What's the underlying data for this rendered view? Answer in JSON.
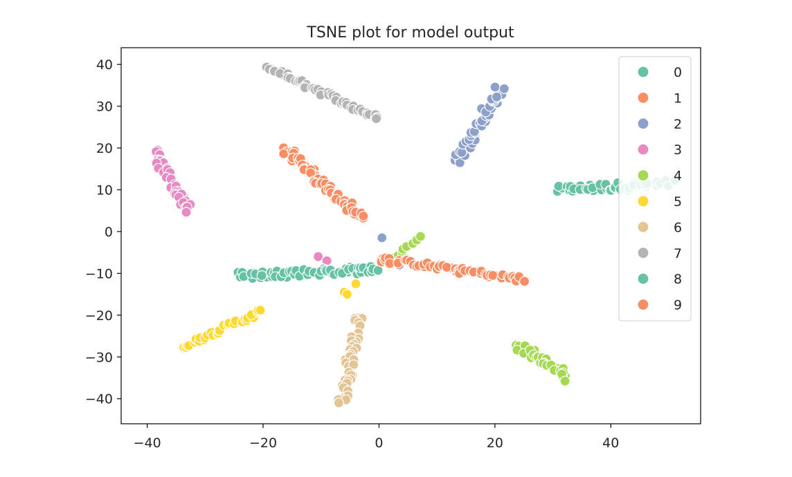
{
  "chart_data": {
    "type": "scatter",
    "title": "TSNE plot for model output",
    "xlabel": "",
    "ylabel": "",
    "xlim": [
      -44.5,
      55.5
    ],
    "ylim": [
      -46,
      44
    ],
    "xticks": [
      -40,
      -20,
      0,
      20,
      40
    ],
    "xtick_labels": [
      "−40",
      "−20",
      "0",
      "20",
      "40"
    ],
    "yticks": [
      -40,
      -30,
      -20,
      -10,
      0,
      10,
      20,
      30,
      40
    ],
    "ytick_labels": [
      "−40",
      "−30",
      "−20",
      "−10",
      "0",
      "10",
      "20",
      "30",
      "40"
    ],
    "grid": false,
    "legend_position": "top-right",
    "series": [
      {
        "name": "0",
        "color": "#66c2a5",
        "clusters": [
          {
            "from": [
              30.5,
              10.0
            ],
            "to": [
              51.5,
              11.5
            ],
            "n": 55,
            "spread": 1.0
          }
        ],
        "points": []
      },
      {
        "name": "1",
        "color": "#fc8d62",
        "clusters": [
          {
            "from": [
              -16.0,
              19.5
            ],
            "to": [
              -3.0,
              3.0
            ],
            "n": 60,
            "spread": 0.9
          }
        ],
        "points": []
      },
      {
        "name": "2",
        "color": "#8da0cb",
        "clusters": [
          {
            "from": [
              13.5,
              16.5
            ],
            "to": [
              21.0,
              34.0
            ],
            "n": 45,
            "spread": 1.0
          }
        ],
        "points": [
          [
            0.5,
            -1.5
          ]
        ]
      },
      {
        "name": "3",
        "color": "#e78ac3",
        "clusters": [
          {
            "from": [
              -39.0,
              19.0
            ],
            "to": [
              -32.5,
              5.0
            ],
            "n": 35,
            "spread": 0.8
          }
        ],
        "points": [
          [
            -10.5,
            -6.0
          ],
          [
            -9.0,
            -7.0
          ],
          [
            3.5,
            -8.0
          ]
        ]
      },
      {
        "name": "4",
        "color": "#a6d854",
        "clusters": [
          {
            "from": [
              24.0,
              -27.0
            ],
            "to": [
              32.5,
              -35.0
            ],
            "n": 30,
            "spread": 0.9
          },
          {
            "from": [
              1.0,
              -7.5
            ],
            "to": [
              7.0,
              -1.5
            ],
            "n": 10,
            "spread": 0.4
          }
        ],
        "points": []
      },
      {
        "name": "5",
        "color": "#ffd92f",
        "clusters": [
          {
            "from": [
              -34.0,
              -27.5
            ],
            "to": [
              -20.0,
              -19.0
            ],
            "n": 35,
            "spread": 0.6
          }
        ],
        "points": [
          [
            -6.0,
            -14.5
          ],
          [
            -4.0,
            -12.5
          ],
          [
            -5.5,
            -15.0
          ]
        ]
      },
      {
        "name": "6",
        "color": "#e5c494",
        "clusters": [
          {
            "from": [
              -3.5,
              -20.0
            ],
            "to": [
              -6.5,
              -41.5
            ],
            "n": 45,
            "spread": 0.9
          }
        ],
        "points": []
      },
      {
        "name": "7",
        "color": "#b3b3b3",
        "clusters": [
          {
            "from": [
              -19.5,
              39.5
            ],
            "to": [
              0.0,
              27.0
            ],
            "n": 55,
            "spread": 0.6
          }
        ],
        "points": []
      },
      {
        "name": "8",
        "color": "#66c2a5",
        "clusters": [
          {
            "from": [
              -23.5,
              -10.5
            ],
            "to": [
              0.0,
              -9.0
            ],
            "n": 70,
            "spread": 0.9
          }
        ],
        "points": []
      },
      {
        "name": "9",
        "color": "#fc8d62",
        "clusters": [
          {
            "from": [
              0.0,
              -6.5
            ],
            "to": [
              25.0,
              -11.5
            ],
            "n": 60,
            "spread": 0.7
          }
        ],
        "points": []
      }
    ]
  }
}
